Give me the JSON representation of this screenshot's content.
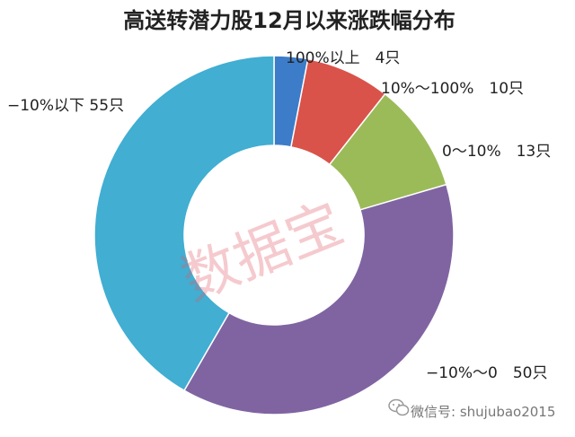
{
  "chart_data": {
    "type": "pie",
    "title": "高送转潜力股12月以来涨跌幅分布",
    "categories": [
      "100%以上",
      "10%～100%",
      "0～10%",
      "−10%～0",
      "−10%以下"
    ],
    "values": [
      4,
      10,
      13,
      50,
      55
    ],
    "data_labels": [
      "100%以上　4只",
      "10%～100%　10只",
      "0～10%　13只",
      "−10%～0　50只",
      "−10%以下 55只"
    ],
    "colors": [
      "#3d7cc9",
      "#d9534a",
      "#9bbb59",
      "#8064a2",
      "#41aed2"
    ],
    "donut": true,
    "start": "12 o'clock, clockwise"
  },
  "watermark": "数据宝",
  "footer": {
    "icon": "wechat-icon",
    "text": "微信号: shujubao2015"
  }
}
